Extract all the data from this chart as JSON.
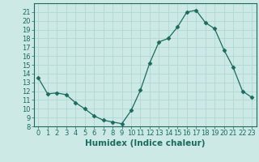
{
  "x": [
    0,
    1,
    2,
    3,
    4,
    5,
    6,
    7,
    8,
    9,
    10,
    11,
    12,
    13,
    14,
    15,
    16,
    17,
    18,
    19,
    20,
    21,
    22,
    23
  ],
  "y": [
    13.5,
    11.7,
    11.8,
    11.6,
    10.7,
    10.0,
    9.2,
    8.7,
    8.5,
    8.3,
    9.8,
    12.1,
    15.2,
    17.6,
    18.0,
    19.3,
    21.0,
    21.2,
    19.8,
    19.1,
    16.7,
    14.7,
    12.0,
    11.3
  ],
  "line_color": "#1a6b5e",
  "marker": "D",
  "marker_size": 2.5,
  "bg_color": "#cce9e5",
  "grid_color": "#b0d8d4",
  "xlabel": "Humidex (Indice chaleur)",
  "xlim": [
    -0.5,
    23.5
  ],
  "ylim": [
    8,
    22
  ],
  "yticks": [
    8,
    9,
    10,
    11,
    12,
    13,
    14,
    15,
    16,
    17,
    18,
    19,
    20,
    21
  ],
  "xticks": [
    0,
    1,
    2,
    3,
    4,
    5,
    6,
    7,
    8,
    9,
    10,
    11,
    12,
    13,
    14,
    15,
    16,
    17,
    18,
    19,
    20,
    21,
    22,
    23
  ],
  "tick_color": "#1a6b5e",
  "label_fontsize": 6,
  "xlabel_fontsize": 7.5
}
